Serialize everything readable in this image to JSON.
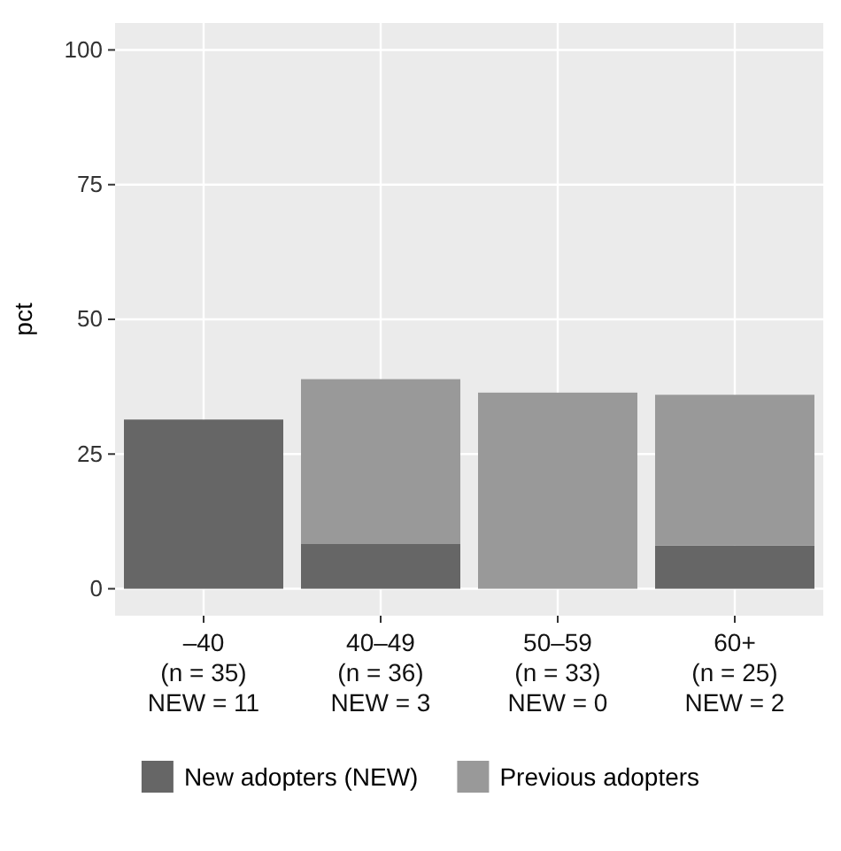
{
  "chart_data": {
    "type": "bar",
    "stacked": true,
    "ylabel": "pct",
    "categories": [
      "–40\n(n = 35)\nNEW = 11",
      "40–49\n(n = 36)\nNEW = 3",
      "50–59\n(n = 33)\nNEW = 0",
      "60+\n(n = 25)\nNEW = 2"
    ],
    "series": [
      {
        "name": "New adopters (NEW)",
        "color": "#666666",
        "values": [
          31.4,
          8.3,
          0,
          8
        ]
      },
      {
        "name": "Previous adopters",
        "color": "#999999",
        "values": [
          0,
          30.6,
          36.4,
          28
        ]
      }
    ],
    "ylim": [
      -5,
      105
    ],
    "yticks": [
      0,
      25,
      50,
      75,
      100
    ],
    "grid": true,
    "legend": "bottom"
  }
}
